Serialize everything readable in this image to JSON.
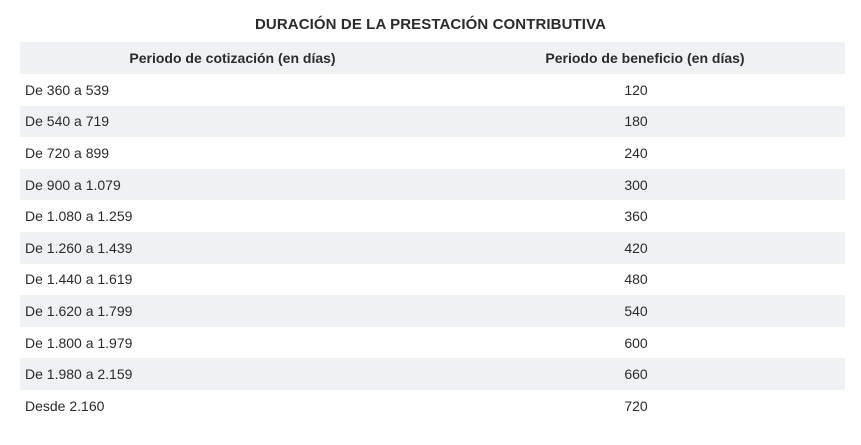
{
  "title": "DURACIÓN DE LA PRESTACIÓN CONTRIBUTIVA",
  "headers": {
    "period": "Periodo de cotización (en días)",
    "benefit": "Periodo de beneficio (en días)"
  },
  "rows": [
    {
      "period": "De 360 a 539",
      "benefit": "120"
    },
    {
      "period": "De 540 a 719",
      "benefit": "180"
    },
    {
      "period": "De 720 a 899",
      "benefit": "240"
    },
    {
      "period": "De 900 a 1.079",
      "benefit": "300"
    },
    {
      "period": "De 1.080 a 1.259",
      "benefit": "360"
    },
    {
      "period": "De 1.260 a 1.439",
      "benefit": "420"
    },
    {
      "period": "De 1.440 a 1.619",
      "benefit": "480"
    },
    {
      "period": "De 1.620 a 1.799",
      "benefit": "540"
    },
    {
      "period": "De 1.800 a 1.979",
      "benefit": "600"
    },
    {
      "period": "De 1.980 a 2.159",
      "benefit": "660"
    },
    {
      "period": "Desde 2.160",
      "benefit": "720"
    }
  ],
  "colors": {
    "stripe": "#eef2f5",
    "text": "#2b2b2b"
  }
}
